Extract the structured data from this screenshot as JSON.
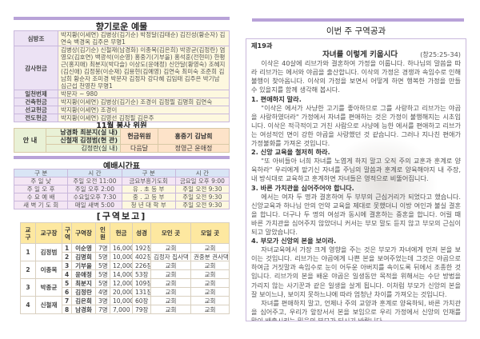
{
  "colors": {
    "accent_bar": "#b8a2d8",
    "label_bg": "#ece2f4",
    "cell_bg": "#fdf8df",
    "zone_header": "#fde8a0"
  },
  "offerings": {
    "title": "향기로운 예물",
    "rows": [
      {
        "label": "심방조",
        "names": "박지황(이세연) 김병상(김기순) 박정달(김태순) 김진성(황순자) 김연숙 백경옥 김주은 무명1"
      },
      {
        "label": "감사헌금",
        "names": "김병상(김기순) 신철재(남경화) 이종목(김은희) 박광균(김정란) 염영오(김호연) 백광석(이순영) 홍중기(기부을) 홍석훈(전현미) 한평근(홍지애) 최분지(박다슬) 이상도(윤애정) 신안달(황영숙) 조혜지(김신애) 김정봉(이순재) 김용현(김예영) 김연숙 최미숙 조준희 김남희 황순자 조미경 박문자 김정자 강다혜 김임태 김주은 박기남 심근섭 천영찬 무명1"
      },
      {
        "label": "일천번제",
        "names": "박문자 ~ 980"
      },
      {
        "label": "건축헌금",
        "names": "박지황(이세연) 김병상(김기순) 조경이 김정필 김명희 김연숙"
      },
      {
        "label": "선교헌금",
        "names": "박지황(이세연) 조경이"
      },
      {
        "label": "전도헌금",
        "names": "박지황(이세연) 김영선 김정필 김은주"
      }
    ]
  },
  "service": {
    "title": "11월 봉사 위원",
    "guide_label": "안  내",
    "guide_rows": [
      "남경화 최분지(실 내)",
      "신철재 김정범(현 관)",
      "김정란(실 내)"
    ],
    "offering_label": "헌금위원",
    "offering_next": "다음달",
    "offering_names": "홍중기  김남희",
    "offering_names_next": "정영근  윤애정"
  },
  "worship": {
    "title": "예배시간표",
    "headers": [
      "구   분",
      "시   간",
      "구   분",
      "시   간"
    ],
    "rows": [
      [
        "주 일 낮",
        "주일 오전 11:00",
        "금요부흥기도회",
        "금요일 오후 9:00"
      ],
      [
        "주 일 오 후",
        "주일 오후 2:00",
        "유 . 초 등 부",
        "주일 오전 9:30"
      ],
      [
        "수 요 예 배",
        "수요일오후 7:30",
        "중 . 고 등 부",
        "주일 오전 9:30"
      ],
      [
        "새 벽 기 도 회",
        "매일 새벽 5:00",
        "청 년 대 학 부",
        "주일 오전 9:30"
      ]
    ]
  },
  "zone_report": {
    "title": "[구역보고]",
    "headers": [
      "교구",
      "교구장",
      "구역",
      "구역장",
      "인원",
      "헌금",
      "성경",
      "모인 곳",
      "모일 곳"
    ],
    "groups": [
      {
        "no": "1",
        "leader": "김정범",
        "rows": [
          [
            "1",
            "이순영",
            "7명",
            "16,000",
            "192장",
            "교회",
            "교회"
          ],
          [
            "2",
            "김명희",
            "5명",
            "10,000",
            "402장",
            "김정자 집사댁",
            "권중분 권사댁"
          ]
        ]
      },
      {
        "no": "2",
        "leader": "이종목",
        "rows": [
          [
            "3",
            "기부을",
            "5명",
            "12,000",
            "226장",
            "교회",
            "교회"
          ],
          [
            "4",
            "윤애정",
            "5명",
            "14,000",
            "53장",
            "교회",
            "교회"
          ]
        ]
      },
      {
        "no": "3",
        "leader": "박종균",
        "rows": [
          [
            "5",
            "최분지",
            "5명",
            "12,000",
            "109장",
            "교회",
            "교회"
          ],
          [
            "6",
            "김정란",
            "4명",
            "20,000",
            "131장",
            "교회",
            "교회"
          ]
        ]
      },
      {
        "no": "4",
        "leader": "신철재",
        "rows": [
          [
            "7",
            "김은희",
            "3명",
            "10,000",
            "60장",
            "교회",
            "교회"
          ],
          [
            "8",
            "남경화",
            "7명",
            "7,000",
            "79장",
            "교회",
            "교회"
          ]
        ]
      }
    ]
  },
  "lesson": {
    "title": "이번 주 구역공과",
    "number": "제19과",
    "subject": "자녀를 이렇게 키웁시다",
    "reference": "(창25:25-34)",
    "intro": "이삭은 40살에 리브가와 결혼하여 가정을 이룹니다. 하나님의 말씀을 따라 리브가는 에서와 야곱을 출산합니다. 이삭의 가정은 경쟁과 속임수로 인해 불행이 찾아옵니다. 이삭의 가정을 보면서 어떻게 하면 행복한 가정을 만들 수 있을지를 함께 생각해 봅시다.",
    "sections": [
      {
        "heading": "1. 편애하지 말라.",
        "body": "\"이삭은 에서가 사냥한 고기를 좋아하므로 그를 사랑하고 리브가는 야곱을 사랑하였더라\" 가정에서 자녀를 편애하는 것은 가정이 불행해지는 시초입니다. 이삭은 적극적이고 거친 사람으로 사냥에 능한 에서를 편애하고 리브가는 여성적인 면이 강한 야곱을 사랑했던 것 같습니다. 그러나 지나친 편애가 가정불화를 가져온 것입니다."
      },
      {
        "heading": "2. 신앙 교육을 철저히 하라.",
        "body": "\"또 아비들아 너희 자녀를 노엽게 하지 말고 오직 주의 교훈과 훈계로 양육하라\" 우리에게 맡기신 자녀를 주님의 말씀과 훈계로 양육해야지 내 주장, 내 방식대로 교육하고 훈계하면 자녀들은 영적으로 비뚤어집니다."
      },
      {
        "heading": "3. 바른 가치관을 심어주어야 합니다.",
        "body": "에서는 여자 두 명과 결혼하여 두 부부의 근심거리가 되었다고 했습니다. 신앙교육과 하나님 안의 언약 교육을 제대로 못했더니 이방 여인과 불실 결혼을 합니다. 더구나 두 명의 여성과 동시에 결혼하는 중혼을 합니다. 어릴 때 바른 가치관을 심어주지 않았더니 커서는 부모 말도 듣지 않고 부모의 근심이 되고 말았습니다."
      },
      {
        "heading": "4. 부모가 신앙의 본을 보이라.",
        "body": "자녀교육에서 가장 크게 영향을 주는 것은 부모가 자녀에게 먼저 본을 보이는 것입니다. 리브가는 야곱에게 나쁜 본을 보여주었는데 그것은 야곱으로 하여금 거짓말과 속임수로 눈이 어두운 아버지를 속이도록 뒤에서 조종한 것입니다. 리브가의 본을 배운 야곱은 일생동안 목적을 위해서는 수단 방법을 가리지 않는 사기꾼과 같은 일생을 살게 됩니다. 이처럼 부모가 신앙의 본을 잘 보이느냐, 보이지 못하느냐에 따라 엄청난 차이를 가져오는 것입니다."
      }
    ],
    "conclusion": "자녀를 편애하지 말고, 언제나 주의 교양과 훈계로 양육하되, 바른 가치관을 심어주고, 우리가 앞장서서 본을 보임으로 우리 가정에서 신앙의 인재를 많이 배출시키는 믿음의 부모가 되시기 바랍니다."
  }
}
